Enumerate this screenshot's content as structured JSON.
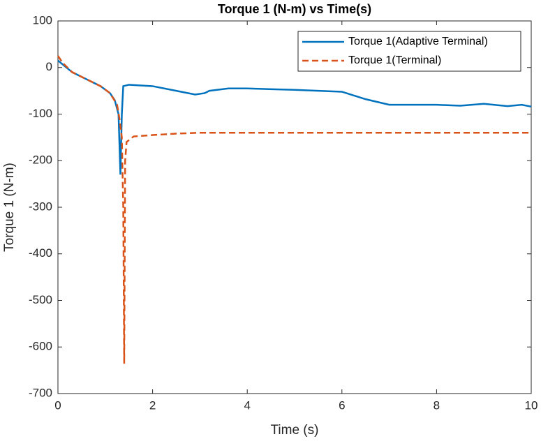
{
  "chart_data": {
    "type": "line",
    "title": "Torque 1 (N-m) vs Time(s)",
    "x_label": "Time (s)",
    "y_label": "Torque 1 (N-m)",
    "xlim": [
      0,
      10
    ],
    "xticks": [
      0,
      2,
      4,
      6,
      8,
      10
    ],
    "ylim": [
      -700,
      100
    ],
    "yticks": [
      -700,
      -600,
      -500,
      -400,
      -300,
      -200,
      -100,
      0,
      100
    ],
    "legend_position": "top-right",
    "series": [
      {
        "name": "Torque 1(Adaptive Terminal)",
        "color": "#0072bd",
        "dash": "solid",
        "x": [
          0,
          0.3,
          0.6,
          0.9,
          1.1,
          1.2,
          1.28,
          1.32,
          1.35,
          1.38,
          1.5,
          2.0,
          2.5,
          2.9,
          3.1,
          3.2,
          3.6,
          4.0,
          5.0,
          6.0,
          6.5,
          7.0,
          8.0,
          8.5,
          9.0,
          9.5,
          9.8,
          10
        ],
        "values": [
          15,
          -10,
          -25,
          -40,
          -55,
          -70,
          -100,
          -230,
          -100,
          -40,
          -37,
          -40,
          -50,
          -58,
          -55,
          -50,
          -45,
          -45,
          -48,
          -52,
          -68,
          -80,
          -80,
          -82,
          -78,
          -83,
          -80,
          -84
        ]
      },
      {
        "name": "Torque 1(Terminal)",
        "color": "#d95319",
        "dash": "dashed",
        "x": [
          0,
          0.1,
          0.3,
          0.6,
          0.9,
          1.1,
          1.25,
          1.3,
          1.35,
          1.38,
          1.4,
          1.42,
          1.45,
          1.6,
          2.0,
          2.5,
          3.0,
          10
        ],
        "values": [
          25,
          10,
          -10,
          -25,
          -40,
          -55,
          -80,
          -110,
          -150,
          -300,
          -636,
          -200,
          -160,
          -148,
          -145,
          -142,
          -140,
          -140
        ]
      }
    ]
  }
}
